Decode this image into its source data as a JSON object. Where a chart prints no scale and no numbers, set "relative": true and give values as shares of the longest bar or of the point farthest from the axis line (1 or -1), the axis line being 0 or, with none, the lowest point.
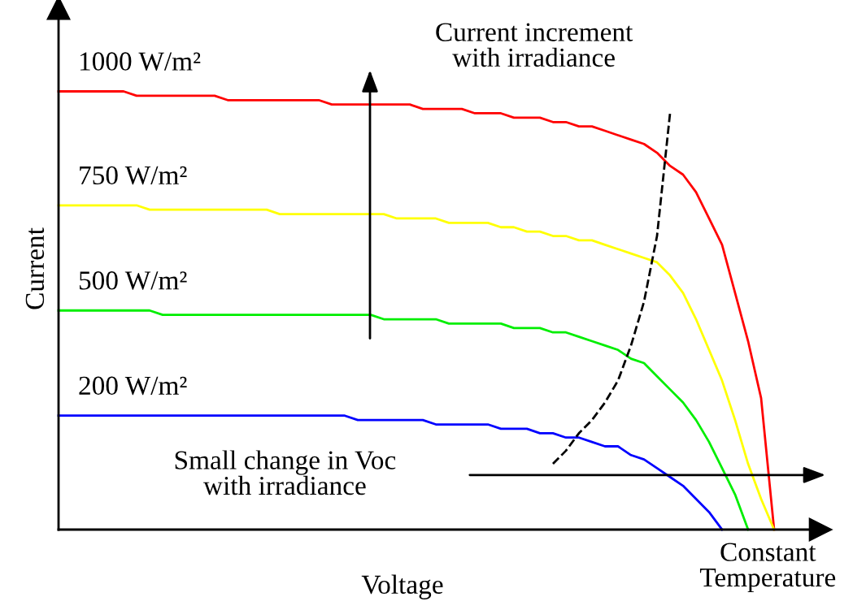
{
  "chart_data": {
    "type": "line",
    "relative": true,
    "xlabel": "Voltage",
    "ylabel": "Current",
    "legend": false,
    "marker": "none",
    "line_style": "solid",
    "categories": [
      null,
      null,
      null,
      null,
      null,
      null,
      null,
      null,
      null,
      null,
      null,
      null,
      null,
      null,
      null,
      null,
      null,
      null,
      null,
      null,
      null,
      null,
      null,
      null,
      null,
      null,
      null,
      null,
      null,
      null,
      null,
      null,
      null,
      null,
      null,
      null,
      null,
      null,
      null,
      null,
      null,
      null,
      null,
      null,
      null,
      null,
      null,
      null,
      null,
      null,
      null,
      null,
      null,
      null,
      null,
      null,
      null,
      null,
      null
    ],
    "series": [
      {
        "name": "1000 W/m²",
        "color": "#ff0000",
        "values": [
          1.0,
          1.0,
          1.0,
          1.0,
          1.0,
          1.0,
          0.99,
          0.99,
          0.99,
          0.99,
          0.99,
          0.99,
          0.99,
          0.98,
          0.98,
          0.98,
          0.98,
          0.98,
          0.98,
          0.98,
          0.98,
          0.97,
          0.97,
          0.97,
          0.97,
          0.97,
          0.97,
          0.97,
          0.96,
          0.96,
          0.96,
          0.96,
          0.95,
          0.95,
          0.95,
          0.94,
          0.94,
          0.94,
          0.93,
          0.93,
          0.92,
          0.92,
          0.91,
          0.9,
          0.89,
          0.88,
          0.86,
          0.83,
          0.81,
          0.77,
          0.71,
          0.65,
          0.54,
          0.43,
          0.3,
          0,
          null,
          null,
          null
        ]
      },
      {
        "name": "750 W/m²",
        "color": "#ffff00",
        "values": [
          0.74,
          0.74,
          0.74,
          0.74,
          0.74,
          0.74,
          0.74,
          0.73,
          0.73,
          0.73,
          0.73,
          0.73,
          0.73,
          0.73,
          0.73,
          0.73,
          0.73,
          0.72,
          0.72,
          0.72,
          0.72,
          0.72,
          0.72,
          0.72,
          0.72,
          0.72,
          0.71,
          0.71,
          0.71,
          0.71,
          0.7,
          0.7,
          0.7,
          0.7,
          0.69,
          0.69,
          0.68,
          0.68,
          0.67,
          0.67,
          0.66,
          0.66,
          0.65,
          0.64,
          0.63,
          0.62,
          0.61,
          0.58,
          0.54,
          0.48,
          0.41,
          0.34,
          0.25,
          0.15,
          0.07,
          0,
          null,
          null,
          null
        ]
      },
      {
        "name": "500 W/m²",
        "color": "#00ee00",
        "values": [
          0.5,
          0.5,
          0.5,
          0.5,
          0.5,
          0.5,
          0.5,
          0.5,
          0.49,
          0.49,
          0.49,
          0.49,
          0.49,
          0.49,
          0.49,
          0.49,
          0.49,
          0.49,
          0.49,
          0.49,
          0.49,
          0.49,
          0.49,
          0.49,
          0.49,
          0.48,
          0.48,
          0.48,
          0.48,
          0.48,
          0.47,
          0.47,
          0.47,
          0.47,
          0.47,
          0.46,
          0.46,
          0.46,
          0.45,
          0.45,
          0.44,
          0.43,
          0.42,
          0.41,
          0.39,
          0.38,
          0.35,
          0.32,
          0.29,
          0.25,
          0.2,
          0.14,
          0.08,
          0,
          null,
          null,
          null,
          null,
          null
        ]
      },
      {
        "name": "200 W/m²",
        "color": "#0000ff",
        "values": [
          0.26,
          0.26,
          0.26,
          0.26,
          0.26,
          0.26,
          0.26,
          0.26,
          0.26,
          0.26,
          0.26,
          0.26,
          0.26,
          0.26,
          0.26,
          0.26,
          0.26,
          0.26,
          0.26,
          0.26,
          0.26,
          0.26,
          0.26,
          0.25,
          0.25,
          0.25,
          0.25,
          0.25,
          0.25,
          0.24,
          0.24,
          0.24,
          0.24,
          0.24,
          0.23,
          0.23,
          0.23,
          0.22,
          0.22,
          0.21,
          0.21,
          0.2,
          0.19,
          0.19,
          0.17,
          0.16,
          0.14,
          0.12,
          0.1,
          0.07,
          0.04,
          0,
          null,
          null,
          null,
          null,
          null,
          null,
          null
        ]
      },
      {
        "color": "#000000",
        "line_style": "dashed",
        "values": [
          null,
          null,
          null,
          null,
          null,
          null,
          null,
          null,
          null,
          null,
          null,
          null,
          null,
          null,
          null,
          null,
          null,
          null,
          null,
          null,
          null,
          null,
          null,
          null,
          null,
          null,
          null,
          null,
          null,
          null,
          null,
          null,
          null,
          null,
          null,
          null,
          null,
          null,
          0.15,
          0.18,
          0.22,
          0.25,
          0.29,
          0.34,
          0.42,
          0.52,
          0.67,
          0.95,
          null,
          null,
          null,
          null,
          null,
          null,
          null,
          null,
          null,
          null,
          null
        ]
      }
    ],
    "annotations": [
      "Current increment\nwith irradiance",
      "Small change in Voc\nwith irradiance",
      "Constant\nTemperature"
    ]
  }
}
